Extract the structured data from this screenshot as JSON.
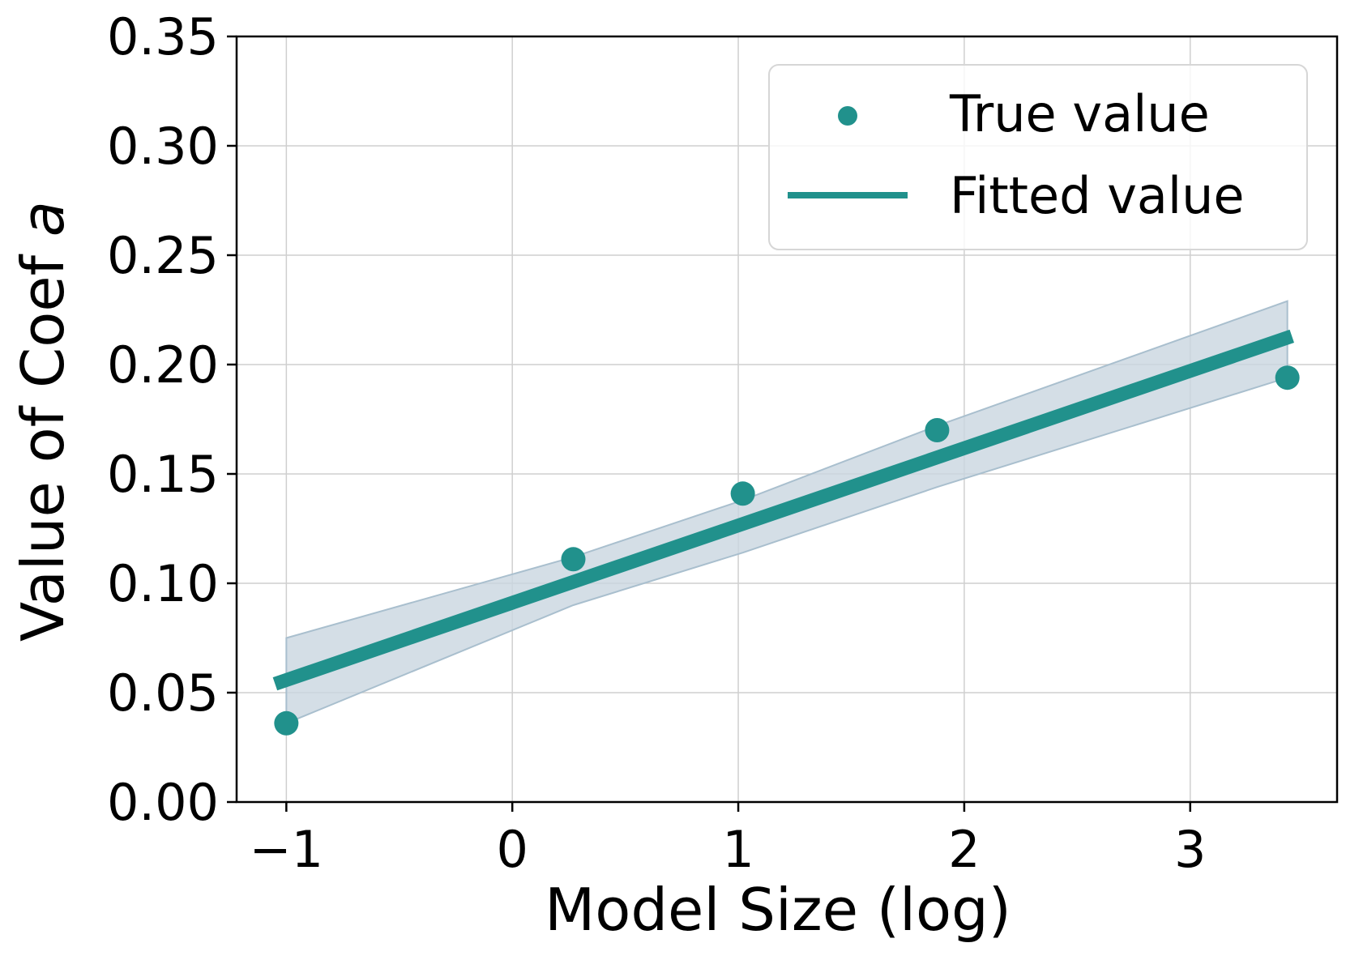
{
  "chart_data": {
    "type": "scatter",
    "title": "",
    "xlabel": "Model Size (log)",
    "ylabel_prefix": "Value of Coef ",
    "ylabel_symbol": "a",
    "xlim": [
      -1.22,
      3.65
    ],
    "ylim": [
      0.0,
      0.35
    ],
    "xticks": [
      -1,
      0,
      1,
      2,
      3
    ],
    "xtick_labels": [
      "−1",
      "0",
      "1",
      "2",
      "3"
    ],
    "yticks": [
      0.0,
      0.05,
      0.1,
      0.15,
      0.2,
      0.25,
      0.3,
      0.35
    ],
    "ytick_labels": [
      "0.00",
      "0.05",
      "0.10",
      "0.15",
      "0.20",
      "0.25",
      "0.30",
      "0.35"
    ],
    "grid": true,
    "legend_position": "top-right",
    "series": [
      {
        "name": "True value",
        "kind": "scatter",
        "color": "#21918c",
        "x": [
          -1.0,
          0.27,
          1.02,
          1.88,
          3.43
        ],
        "y": [
          0.036,
          0.111,
          0.141,
          0.17,
          0.194
        ]
      },
      {
        "name": "Fitted value",
        "kind": "line",
        "color": "#21918c",
        "x": [
          -1.05,
          3.45
        ],
        "y": [
          0.054,
          0.213
        ]
      }
    ],
    "confidence_band": {
      "color": "#c9d6e0",
      "edge_color": "#a9bfce",
      "x": [
        -1.0,
        0.27,
        1.02,
        1.88,
        3.43
      ],
      "upper": [
        0.075,
        0.112,
        0.138,
        0.172,
        0.229
      ],
      "lower": [
        0.036,
        0.09,
        0.114,
        0.144,
        0.194
      ]
    }
  }
}
